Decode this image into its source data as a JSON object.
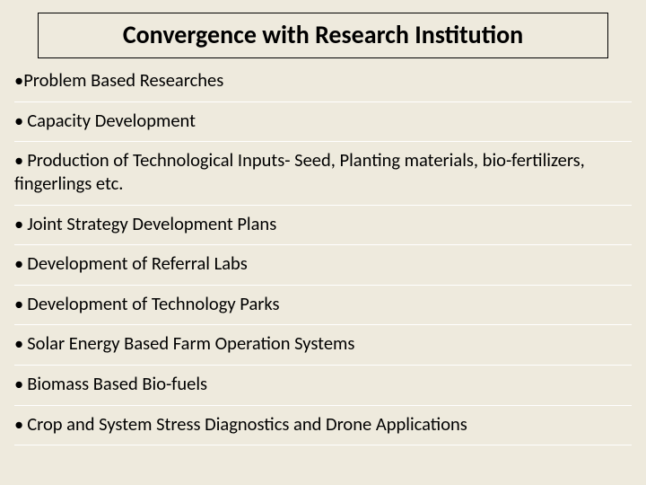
{
  "slide": {
    "title": "Convergence with Research Institution",
    "title_fontsize": 28,
    "title_color": "#000000",
    "title_border_color": "#000000",
    "background_color": "#eeeadd",
    "divider_color": "#ffffff",
    "bullet_fontsize": 20.5,
    "bullet_color": "#000000",
    "bullets": [
      "Problem Based Researches",
      "Capacity Development",
      "Production of Technological Inputs- Seed, Planting materials, bio-fertilizers,  fingerlings etc.",
      "Joint Strategy Development Plans",
      "Development of Referral Labs",
      "Development of Technology Parks",
      "Solar Energy Based Farm Operation Systems",
      "Biomass Based Bio-fuels",
      "Crop and System Stress Diagnostics and Drone Applications"
    ]
  }
}
